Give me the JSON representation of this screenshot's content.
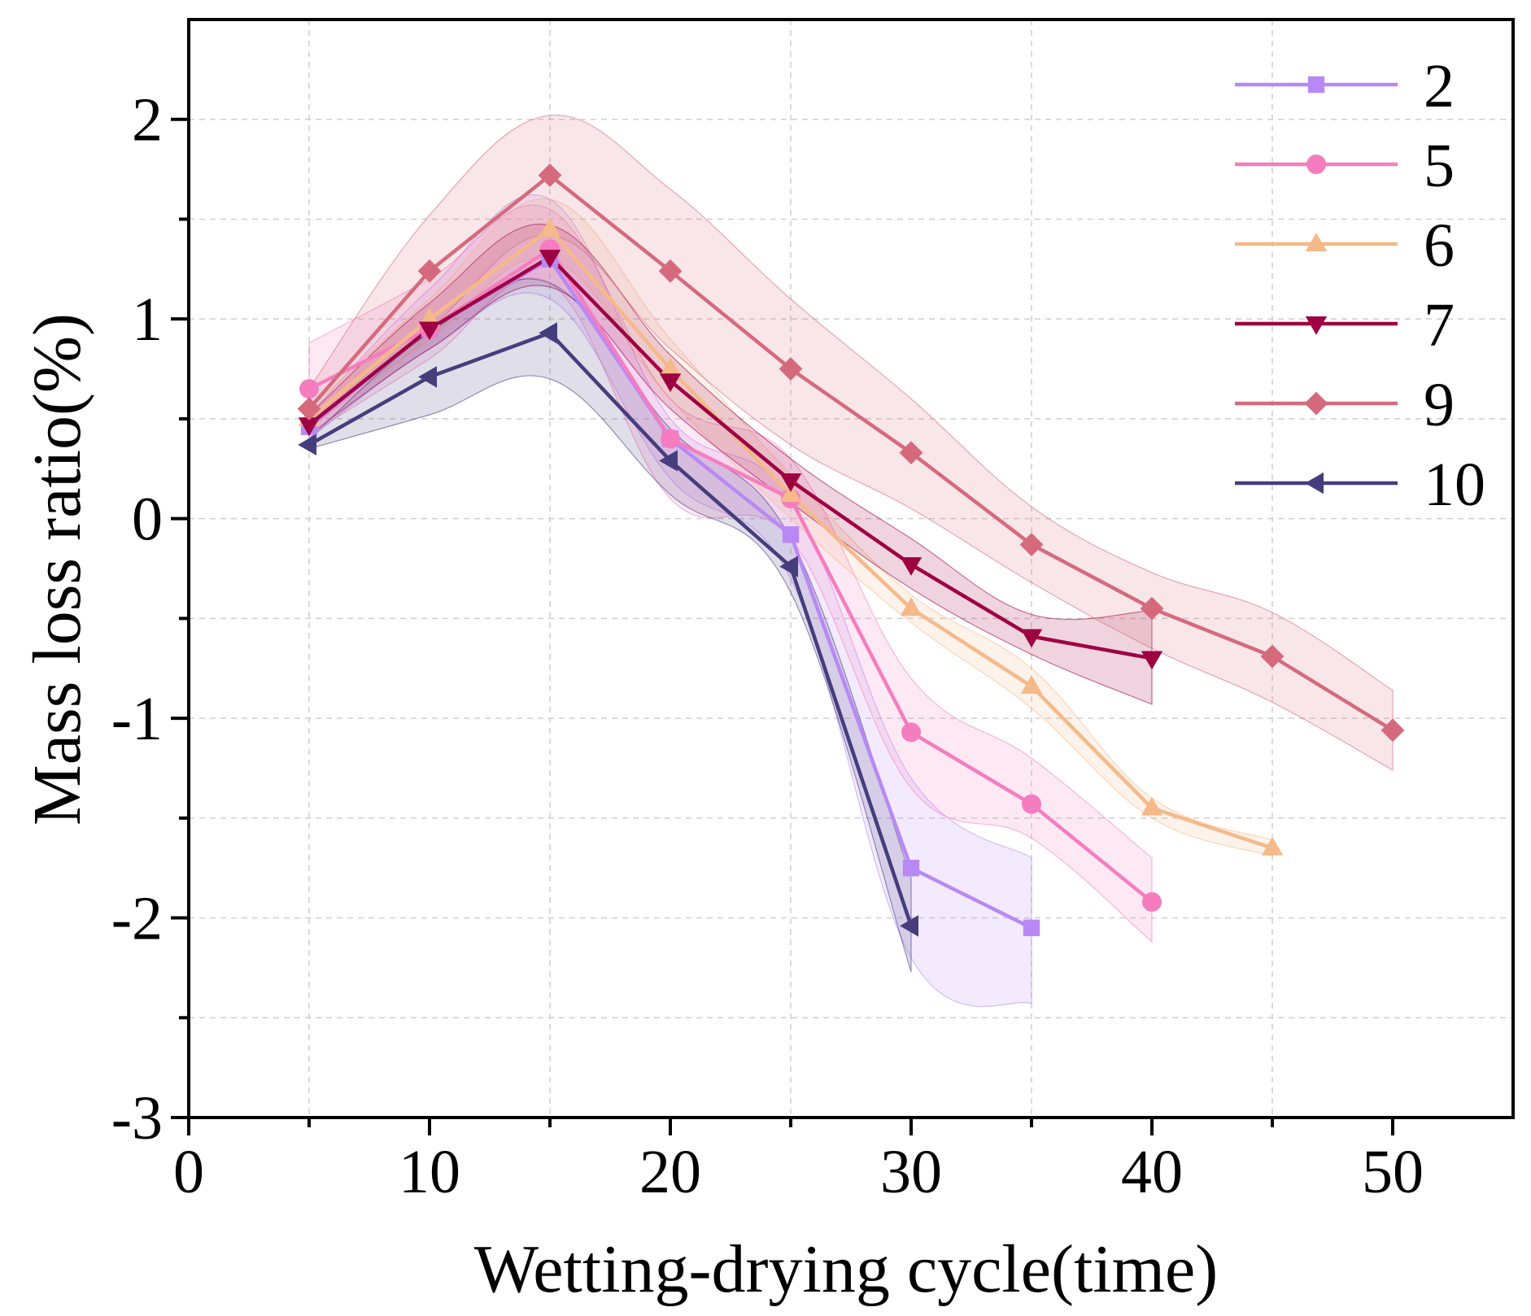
{
  "chart_data": {
    "type": "line",
    "title": "",
    "xlabel": "Wetting-drying cycle(time)",
    "ylabel": "Mass loss ratio(%)",
    "xlim": [
      0,
      55
    ],
    "ylim": [
      -3,
      2.5
    ],
    "xticks": [
      0,
      10,
      20,
      30,
      40,
      50
    ],
    "xtick_labels": [
      "0",
      "10",
      "20",
      "30",
      "40",
      "50"
    ],
    "yticks": [
      -3,
      -2,
      -1,
      0,
      1,
      2
    ],
    "ytick_labels": [
      "-3",
      "-2",
      "-1",
      "0",
      "1",
      "2"
    ],
    "grid": true,
    "legend_position": "top-right",
    "series": [
      {
        "name": "2",
        "color": "#B889F5",
        "marker": "square",
        "x": [
          5,
          10,
          15,
          20,
          25,
          30,
          35
        ],
        "y": [
          0.46,
          0.95,
          1.3,
          0.4,
          -0.08,
          -1.75,
          -2.05
        ],
        "band_lower": [
          0.4,
          0.85,
          1.1,
          0.2,
          -0.3,
          -2.2,
          -2.43
        ],
        "band_upper": [
          0.52,
          1.15,
          1.6,
          0.5,
          0.1,
          -1.3,
          -1.7
        ]
      },
      {
        "name": "5",
        "color": "#F57DBF",
        "marker": "circle",
        "x": [
          5,
          10,
          15,
          20,
          25,
          30,
          35,
          40
        ],
        "y": [
          0.65,
          0.95,
          1.35,
          0.4,
          0.1,
          -1.07,
          -1.43,
          -1.92
        ],
        "band_lower": [
          0.42,
          0.8,
          1.18,
          0.1,
          -0.1,
          -1.35,
          -1.6,
          -2.12
        ],
        "band_upper": [
          0.88,
          1.2,
          1.55,
          0.6,
          0.3,
          -0.8,
          -1.2,
          -1.7
        ]
      },
      {
        "name": "6",
        "color": "#F5B98A",
        "marker": "triangle-up",
        "x": [
          5,
          10,
          15,
          20,
          25,
          30,
          35,
          40,
          45
        ],
        "y": [
          0.5,
          1.0,
          1.45,
          0.75,
          0.12,
          -0.45,
          -0.84,
          -1.45,
          -1.65
        ],
        "band_lower": [
          0.45,
          0.9,
          1.3,
          0.6,
          0.0,
          -0.52,
          -0.95,
          -1.5,
          -1.69
        ],
        "band_upper": [
          0.55,
          1.1,
          1.6,
          0.9,
          0.22,
          -0.38,
          -0.75,
          -1.4,
          -1.61
        ]
      },
      {
        "name": "7",
        "color": "#9E0142",
        "marker": "triangle-down",
        "x": [
          5,
          10,
          15,
          20,
          25,
          30,
          35,
          40
        ],
        "y": [
          0.47,
          0.95,
          1.31,
          0.69,
          0.19,
          -0.23,
          -0.59,
          -0.7
        ],
        "band_lower": [
          0.42,
          0.85,
          1.16,
          0.55,
          0.08,
          -0.35,
          -0.68,
          -0.93
        ],
        "band_upper": [
          0.52,
          1.08,
          1.47,
          0.82,
          0.3,
          -0.1,
          -0.48,
          -0.46
        ]
      },
      {
        "name": "9",
        "color": "#D56A7D",
        "marker": "diamond",
        "x": [
          5,
          10,
          15,
          20,
          25,
          30,
          35,
          40,
          45,
          50
        ],
        "y": [
          0.55,
          1.24,
          1.72,
          1.24,
          0.75,
          0.33,
          -0.13,
          -0.45,
          -0.69,
          -1.06
        ],
        "band_lower": [
          0.45,
          0.95,
          1.42,
          0.85,
          0.37,
          0.05,
          -0.32,
          -0.65,
          -0.92,
          -1.26
        ],
        "band_upper": [
          0.65,
          1.52,
          2.02,
          1.65,
          1.1,
          0.6,
          0.06,
          -0.27,
          -0.47,
          -0.86
        ]
      },
      {
        "name": "10",
        "color": "#463D7D",
        "marker": "triangle-left",
        "x": [
          5,
          10,
          15,
          20,
          25,
          30
        ],
        "y": [
          0.37,
          0.71,
          0.93,
          0.29,
          -0.24,
          -2.04
        ],
        "band_lower": [
          0.35,
          0.52,
          0.7,
          0.12,
          -0.37,
          -2.27
        ],
        "band_upper": [
          0.4,
          0.93,
          1.18,
          0.45,
          -0.1,
          -1.8
        ]
      }
    ]
  }
}
